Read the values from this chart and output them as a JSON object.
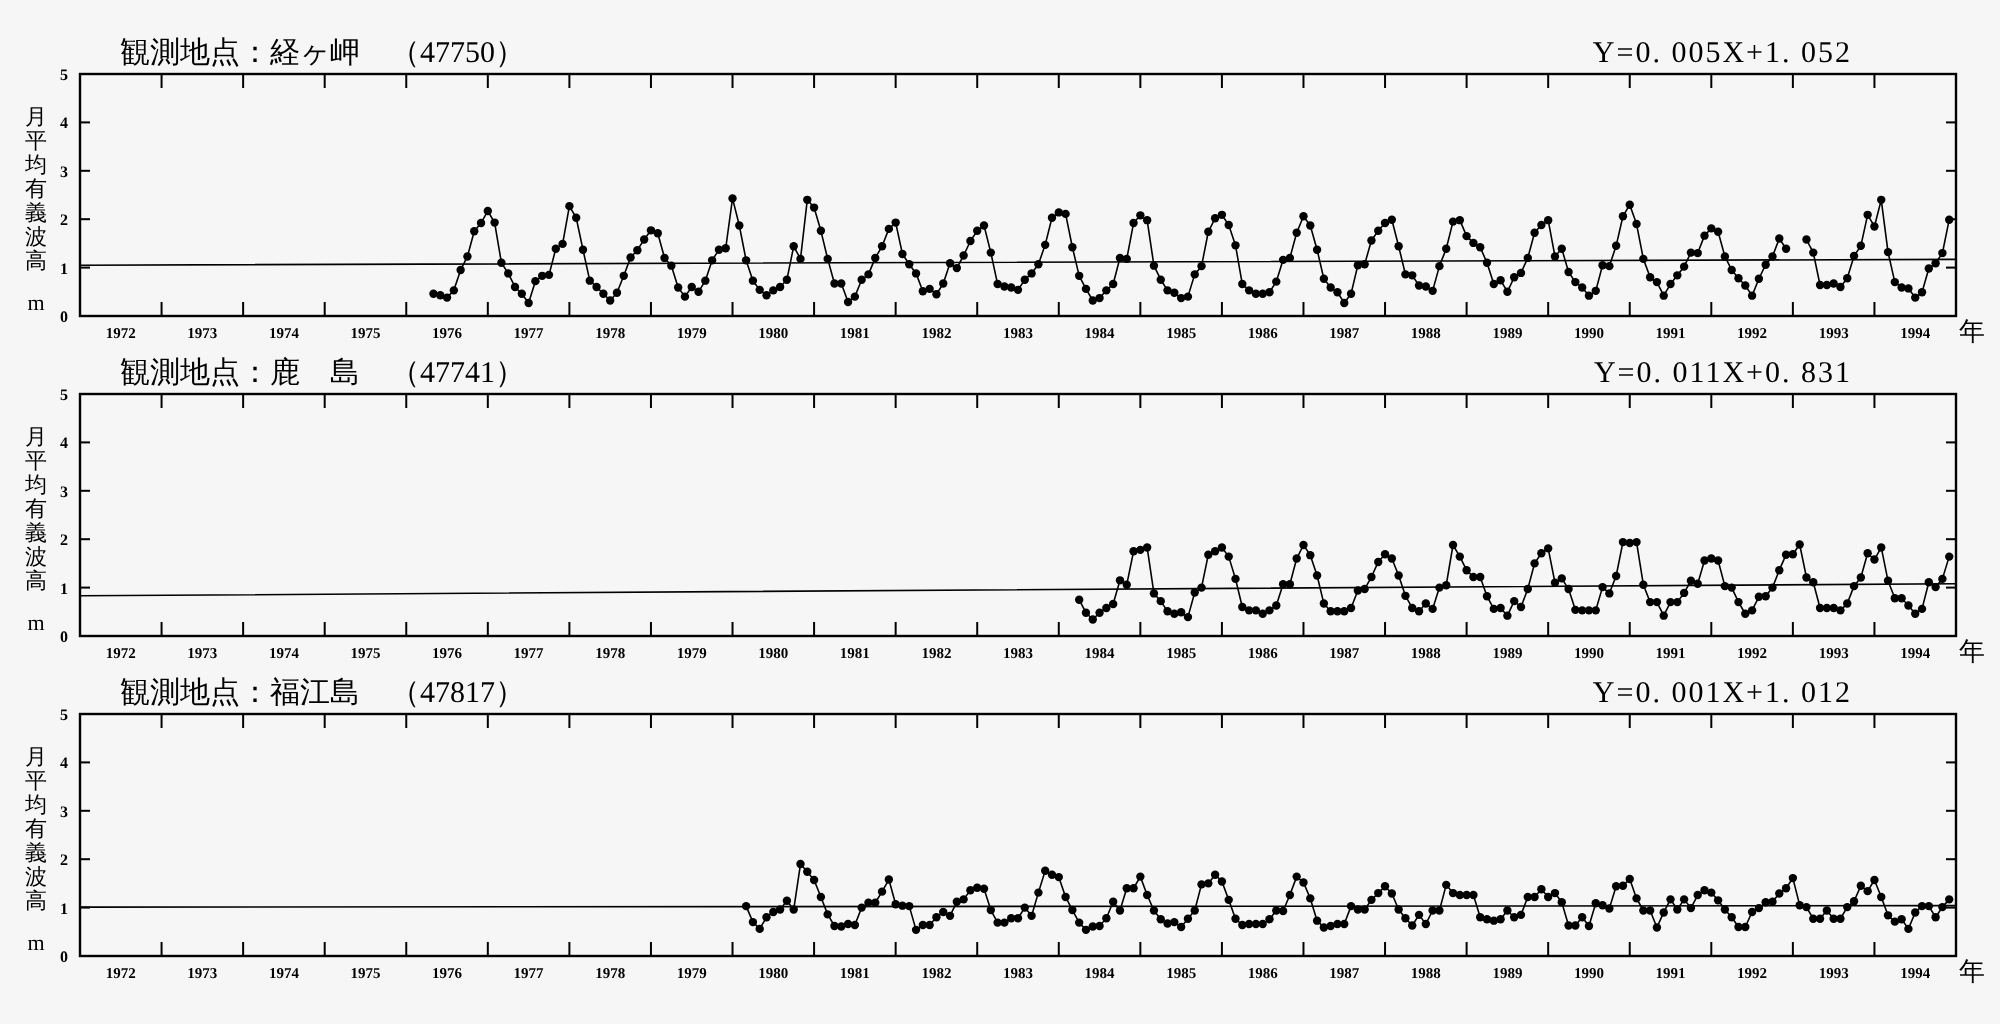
{
  "chart_data": [
    {
      "type": "line",
      "title": "観測地点：経ヶ岬　（47750）",
      "annotations": [
        "Y=0. 005X+1. 052"
      ],
      "ylabel": "月平均有義波高 m",
      "xlabel": "年",
      "xlim": [
        "1972",
        "1995"
      ],
      "ylim": [
        0,
        5
      ],
      "yticks": [
        0,
        1,
        2,
        3,
        4,
        5
      ],
      "xticks": [
        {
          "value": "1972-07",
          "label": "1972"
        },
        {
          "value": "1973-07",
          "label": "1973"
        },
        {
          "value": "1974-07",
          "label": "1974"
        },
        {
          "value": "1975-07",
          "label": "1975"
        },
        {
          "value": "1976-07",
          "label": "1976"
        },
        {
          "value": "1977-07",
          "label": "1977"
        },
        {
          "value": "1978-07",
          "label": "1978"
        },
        {
          "value": "1979-07",
          "label": "1979"
        },
        {
          "value": "1980-07",
          "label": "1980"
        },
        {
          "value": "1981-07",
          "label": "1981"
        },
        {
          "value": "1982-07",
          "label": "1982"
        },
        {
          "value": "1983-07",
          "label": "1983"
        },
        {
          "value": "1984-07",
          "label": "1984"
        },
        {
          "value": "1985-07",
          "label": "1985"
        },
        {
          "value": "1986-07",
          "label": "1986"
        },
        {
          "value": "1987-07",
          "label": "1987"
        },
        {
          "value": "1988-07",
          "label": "1988"
        },
        {
          "value": "1989-07",
          "label": "1989"
        },
        {
          "value": "1990-07",
          "label": "1990"
        },
        {
          "value": "1991-07",
          "label": "1991"
        },
        {
          "value": "1992-07",
          "label": "1992"
        },
        {
          "value": "1993-07",
          "label": "1993"
        },
        {
          "value": "1994-07",
          "label": "1994"
        },
        {
          "value": "1973",
          "label": null
        },
        {
          "value": "1974",
          "label": null
        },
        {
          "value": "1975",
          "label": null
        },
        {
          "value": "1976",
          "label": null
        },
        {
          "value": "1977",
          "label": null
        },
        {
          "value": "1978",
          "label": null
        },
        {
          "value": "1979",
          "label": null
        },
        {
          "value": "1980",
          "label": null
        },
        {
          "value": "1981",
          "label": null
        },
        {
          "value": "1982",
          "label": null
        },
        {
          "value": "1983",
          "label": null
        },
        {
          "value": "1984",
          "label": null
        },
        {
          "value": "1985",
          "label": null
        },
        {
          "value": "1986",
          "label": null
        },
        {
          "value": "1987",
          "label": null
        },
        {
          "value": "1988",
          "label": null
        },
        {
          "value": "1989",
          "label": null
        },
        {
          "value": "1990",
          "label": null
        },
        {
          "value": "1991",
          "label": null
        },
        {
          "value": "1992",
          "label": null
        },
        {
          "value": "1993",
          "label": null
        },
        {
          "value": "1994",
          "label": null
        }
      ],
      "series": [
        {
          "type": "line",
          "marker": "circle",
          "color": "#000000",
          "x": [
            "1976-05",
            "1976-06",
            "1976-07",
            "1976-08",
            "1976-09",
            "1976-10",
            "1976-11",
            "1976-12",
            "1977-01",
            "1977-02",
            "1977-03",
            "1977-04",
            "1977-05",
            "1977-06",
            "1977-07",
            "1977-08",
            "1977-09",
            "1977-10",
            "1977-11",
            "1977-12",
            "1978-01",
            "1978-02",
            "1978-03",
            "1978-04",
            "1978-05",
            "1978-06",
            "1978-07",
            "1978-08",
            "1978-09",
            "1978-10",
            "1978-11",
            "1978-12",
            "1979-01",
            "1979-02",
            "1979-03",
            "1979-04",
            "1979-05",
            "1979-06",
            "1979-07",
            "1979-08",
            "1979-09",
            "1979-10",
            "1979-11",
            "1979-12",
            "1980-01",
            "1980-02",
            "1980-03",
            "1980-04",
            "1980-05",
            "1980-06",
            "1980-07",
            "1980-08",
            "1980-09",
            "1980-10",
            "1980-11",
            "1980-12",
            "1981-01",
            "1981-02",
            "1981-03",
            "1981-04",
            "1981-05",
            "1981-06",
            "1981-07",
            "1981-08",
            "1981-09",
            "1981-10",
            "1981-11",
            "1981-12",
            "1982-01",
            "1982-02",
            "1982-03",
            "1982-04",
            "1982-05",
            "1982-06",
            "1982-07",
            "1982-08",
            "1982-09",
            "1982-10",
            "1982-11",
            "1982-12",
            "1983-01",
            "1983-02",
            "1983-03",
            "1983-04",
            "1983-05",
            "1983-06",
            "1983-07",
            "1983-08",
            "1983-09",
            "1983-10",
            "1983-11",
            "1983-12",
            "1984-01",
            "1984-02",
            "1984-03",
            "1984-04",
            "1984-05",
            "1984-06",
            "1984-07",
            "1984-08",
            "1984-09",
            "1984-10",
            "1984-11",
            "1984-12",
            "1985-01",
            "1985-02",
            "1985-03",
            "1985-04",
            "1985-05",
            "1985-06",
            "1985-07",
            "1985-08",
            "1985-09",
            "1985-10",
            "1985-11",
            "1985-12",
            "1986-01",
            "1986-02",
            "1986-03",
            "1986-04",
            "1986-05",
            "1986-06",
            "1986-07",
            "1986-08",
            "1986-09",
            "1986-10",
            "1986-11",
            "1986-12",
            "1987-01",
            "1987-02",
            "1987-03",
            "1987-04",
            "1987-05",
            "1987-06",
            "1987-07",
            "1987-08",
            "1987-09",
            "1987-10",
            "1987-11",
            "1987-12",
            "1988-01",
            "1988-02",
            "1988-03",
            "1988-04",
            "1988-05",
            "1988-06",
            "1988-07",
            "1988-08",
            "1988-09",
            "1988-10",
            "1988-11",
            "1988-12",
            "1989-01",
            "1989-02",
            "1989-03",
            "1989-04",
            "1989-05",
            "1989-06",
            "1989-07",
            "1989-08",
            "1989-09",
            "1989-10",
            "1989-11",
            "1989-12",
            "1990-01",
            "1990-02",
            "1990-03",
            "1990-04",
            "1990-05",
            "1990-06",
            "1990-07",
            "1990-08",
            "1990-09",
            "1990-10",
            "1990-11",
            "1990-12",
            "1991-01",
            "1991-02",
            "1991-03",
            "1991-04",
            "1991-05",
            "1991-06",
            "1991-07",
            "1991-08",
            "1991-09",
            "1991-10",
            "1991-11",
            "1991-12",
            "1992-01",
            "1992-02",
            "1992-03",
            "1992-04",
            "1992-05",
            "1992-06",
            "1992-07",
            "1992-08",
            "1992-09",
            "1992-10",
            "1992-11",
            "1992-12",
            "1993-01",
            "1993-02",
            "1993-03",
            "1993-04",
            "1993-05",
            "1993-06",
            "1993-07",
            "1993-08",
            "1993-09",
            "1993-10",
            "1993-11",
            "1993-12",
            "1994-01",
            "1994-02",
            "1994-03",
            "1994-04",
            "1994-05",
            "1994-06",
            "1994-07",
            "1994-08",
            "1994-09",
            "1994-10",
            "1994-11",
            "1994-12"
          ],
          "values": [
            0.46,
            0.43,
            0.38,
            0.53,
            0.95,
            1.23,
            1.75,
            1.92,
            2.17,
            1.93,
            1.1,
            0.88,
            0.6,
            0.46,
            0.27,
            0.72,
            0.83,
            0.85,
            1.39,
            1.49,
            2.27,
            2.03,
            1.37,
            0.73,
            0.6,
            0.46,
            0.32,
            0.48,
            0.83,
            1.21,
            1.36,
            1.58,
            1.77,
            1.71,
            1.2,
            1.04,
            0.59,
            0.4,
            0.6,
            0.5,
            0.73,
            1.15,
            1.37,
            1.4,
            2.43,
            1.87,
            1.15,
            0.73,
            0.54,
            0.43,
            0.53,
            0.6,
            0.75,
            1.44,
            1.18,
            2.4,
            2.24,
            1.76,
            1.18,
            0.67,
            0.67,
            0.29,
            0.4,
            0.75,
            0.86,
            1.2,
            1.44,
            1.8,
            1.93,
            1.28,
            1.07,
            0.88,
            0.51,
            0.56,
            0.45,
            0.67,
            1.09,
            0.99,
            1.25,
            1.55,
            1.76,
            1.87,
            1.31,
            0.66,
            0.61,
            0.59,
            0.54,
            0.75,
            0.88,
            1.07,
            1.47,
            2.03,
            2.14,
            2.11,
            1.42,
            0.83,
            0.56,
            0.32,
            0.37,
            0.53,
            0.66,
            1.2,
            1.18,
            1.92,
            2.08,
            1.98,
            1.04,
            0.75,
            0.53,
            0.48,
            0.37,
            0.4,
            0.86,
            1.03,
            1.74,
            2.02,
            2.09,
            1.88,
            1.46,
            0.66,
            0.53,
            0.46,
            0.46,
            0.49,
            0.71,
            1.16,
            1.2,
            1.72,
            2.06,
            1.87,
            1.37,
            0.77,
            0.59,
            0.49,
            0.27,
            0.46,
            1.05,
            1.07,
            1.56,
            1.76,
            1.92,
            1.99,
            1.44,
            0.86,
            0.84,
            0.63,
            0.61,
            0.52,
            1.03,
            1.39,
            1.95,
            1.98,
            1.65,
            1.51,
            1.42,
            1.1,
            0.66,
            0.74,
            0.5,
            0.8,
            0.89,
            1.2,
            1.72,
            1.88,
            1.98,
            1.23,
            1.39,
            0.91,
            0.7,
            0.59,
            0.42,
            0.52,
            1.05,
            1.03,
            1.45,
            2.06,
            2.3,
            1.9,
            1.18,
            0.8,
            0.7,
            0.42,
            0.66,
            0.84,
            1.02,
            1.31,
            1.3,
            1.66,
            1.81,
            1.74,
            1.23,
            0.95,
            0.78,
            0.63,
            0.42,
            0.77,
            1.06,
            1.23,
            1.6,
            1.39,
            null,
            null,
            1.58,
            1.31,
            0.64,
            0.64,
            0.67,
            0.6,
            0.78,
            1.24,
            1.45,
            2.09,
            1.85,
            2.4,
            1.32,
            0.7,
            0.59,
            0.57,
            0.38,
            0.49,
            0.98,
            1.09,
            1.3,
            1.99
          ]
        },
        {
          "type": "line",
          "marker": "none",
          "color": "#000000",
          "x": [
            "1972",
            "1995"
          ],
          "values": [
            1.05,
            1.17
          ]
        }
      ]
    },
    {
      "type": "line",
      "title": "観測地点：鹿　島　（47741）",
      "annotations": [
        "Y=0. 011X+0. 831"
      ],
      "ylabel": "月平均有義波高 m",
      "xlabel": "年",
      "xlim": [
        "1972",
        "1995"
      ],
      "ylim": [
        0,
        5
      ],
      "yticks": [
        0,
        1,
        2,
        3,
        4,
        5
      ],
      "xticks": [
        {
          "value": "1972-07",
          "label": "1972"
        },
        {
          "value": "1973-07",
          "label": "1973"
        },
        {
          "value": "1974-07",
          "label": "1974"
        },
        {
          "value": "1975-07",
          "label": "1975"
        },
        {
          "value": "1976-07",
          "label": "1976"
        },
        {
          "value": "1977-07",
          "label": "1977"
        },
        {
          "value": "1978-07",
          "label": "1978"
        },
        {
          "value": "1979-07",
          "label": "1979"
        },
        {
          "value": "1980-07",
          "label": "1980"
        },
        {
          "value": "1981-07",
          "label": "1981"
        },
        {
          "value": "1982-07",
          "label": "1982"
        },
        {
          "value": "1983-07",
          "label": "1983"
        },
        {
          "value": "1984-07",
          "label": "1984"
        },
        {
          "value": "1985-07",
          "label": "1985"
        },
        {
          "value": "1986-07",
          "label": "1986"
        },
        {
          "value": "1987-07",
          "label": "1987"
        },
        {
          "value": "1988-07",
          "label": "1988"
        },
        {
          "value": "1989-07",
          "label": "1989"
        },
        {
          "value": "1990-07",
          "label": "1990"
        },
        {
          "value": "1991-07",
          "label": "1991"
        },
        {
          "value": "1992-07",
          "label": "1992"
        },
        {
          "value": "1993-07",
          "label": "1993"
        },
        {
          "value": "1994-07",
          "label": "1994"
        },
        {
          "value": "1973",
          "label": null
        },
        {
          "value": "1974",
          "label": null
        },
        {
          "value": "1975",
          "label": null
        },
        {
          "value": "1976",
          "label": null
        },
        {
          "value": "1977",
          "label": null
        },
        {
          "value": "1978",
          "label": null
        },
        {
          "value": "1979",
          "label": null
        },
        {
          "value": "1980",
          "label": null
        },
        {
          "value": "1981",
          "label": null
        },
        {
          "value": "1982",
          "label": null
        },
        {
          "value": "1983",
          "label": null
        },
        {
          "value": "1984",
          "label": null
        },
        {
          "value": "1985",
          "label": null
        },
        {
          "value": "1986",
          "label": null
        },
        {
          "value": "1987",
          "label": null
        },
        {
          "value": "1988",
          "label": null
        },
        {
          "value": "1989",
          "label": null
        },
        {
          "value": "1990",
          "label": null
        },
        {
          "value": "1991",
          "label": null
        },
        {
          "value": "1992",
          "label": null
        },
        {
          "value": "1993",
          "label": null
        },
        {
          "value": "1994",
          "label": null
        }
      ],
      "series": [
        {
          "type": "line",
          "marker": "circle",
          "color": "#000000",
          "x": [
            "1984-04",
            "1984-05",
            "1984-06",
            "1984-07",
            "1984-08",
            "1984-09",
            "1984-10",
            "1984-11",
            "1984-12",
            "1985-01",
            "1985-02",
            "1985-03",
            "1985-04",
            "1985-05",
            "1985-06",
            "1985-07",
            "1985-08",
            "1985-09",
            "1985-10",
            "1985-11",
            "1985-12",
            "1986-01",
            "1986-02",
            "1986-03",
            "1986-04",
            "1986-05",
            "1986-06",
            "1986-07",
            "1986-08",
            "1986-09",
            "1986-10",
            "1986-11",
            "1986-12",
            "1987-01",
            "1987-02",
            "1987-03",
            "1987-04",
            "1987-05",
            "1987-06",
            "1987-07",
            "1987-08",
            "1987-09",
            "1987-10",
            "1987-11",
            "1987-12",
            "1988-01",
            "1988-02",
            "1988-03",
            "1988-04",
            "1988-05",
            "1988-06",
            "1988-07",
            "1988-08",
            "1988-09",
            "1988-10",
            "1988-11",
            "1988-12",
            "1989-01",
            "1989-02",
            "1989-03",
            "1989-04",
            "1989-05",
            "1989-06",
            "1989-07",
            "1989-08",
            "1989-09",
            "1989-10",
            "1989-11",
            "1989-12",
            "1990-01",
            "1990-02",
            "1990-03",
            "1990-04",
            "1990-05",
            "1990-06",
            "1990-07",
            "1990-08",
            "1990-09",
            "1990-10",
            "1990-11",
            "1990-12",
            "1991-01",
            "1991-02",
            "1991-03",
            "1991-04",
            "1991-05",
            "1991-06",
            "1991-07",
            "1991-08",
            "1991-09",
            "1991-10",
            "1991-11",
            "1991-12",
            "1992-01",
            "1992-02",
            "1992-03",
            "1992-04",
            "1992-05",
            "1992-06",
            "1992-07",
            "1992-08",
            "1992-09",
            "1992-10",
            "1992-11",
            "1992-12",
            "1993-01",
            "1993-02",
            "1993-03",
            "1993-04",
            "1993-05",
            "1993-06",
            "1993-07",
            "1993-08",
            "1993-09",
            "1993-10",
            "1993-11",
            "1993-12",
            "1994-01",
            "1994-02",
            "1994-03",
            "1994-04",
            "1994-05",
            "1994-06",
            "1994-07",
            "1994-08",
            "1994-09",
            "1994-10",
            "1994-11",
            "1994-12"
          ],
          "values": [
            0.75,
            0.48,
            0.34,
            0.48,
            0.58,
            0.66,
            1.15,
            1.06,
            1.75,
            1.78,
            1.83,
            0.88,
            0.72,
            0.51,
            0.46,
            0.49,
            0.39,
            0.9,
            1.0,
            1.68,
            1.75,
            1.83,
            1.64,
            1.18,
            0.6,
            0.53,
            0.53,
            0.46,
            0.53,
            0.63,
            1.07,
            1.07,
            1.6,
            1.88,
            1.67,
            1.25,
            0.67,
            0.51,
            0.51,
            0.51,
            0.58,
            0.94,
            0.97,
            1.22,
            1.53,
            1.69,
            1.6,
            1.25,
            0.83,
            0.58,
            0.51,
            0.67,
            0.56,
            1.0,
            1.05,
            1.88,
            1.64,
            1.36,
            1.22,
            1.22,
            0.82,
            0.56,
            0.58,
            0.42,
            0.72,
            0.6,
            0.97,
            1.5,
            1.71,
            1.81,
            1.1,
            1.19,
            0.97,
            0.54,
            0.53,
            0.53,
            0.53,
            1.01,
            0.88,
            1.24,
            1.94,
            1.92,
            1.94,
            1.06,
            0.7,
            0.7,
            0.42,
            0.7,
            0.7,
            0.89,
            1.14,
            1.08,
            1.56,
            1.6,
            1.56,
            1.03,
            1.0,
            0.7,
            0.46,
            0.53,
            0.81,
            0.82,
            1.0,
            1.36,
            1.68,
            1.69,
            1.89,
            1.21,
            1.11,
            0.58,
            0.58,
            0.58,
            0.53,
            0.67,
            1.03,
            1.21,
            1.71,
            1.58,
            1.83,
            1.14,
            0.78,
            0.78,
            0.63,
            0.46,
            0.56,
            1.11,
            1.01,
            1.18,
            1.64
          ]
        },
        {
          "type": "line",
          "marker": "none",
          "color": "#000000",
          "x": [
            "1972",
            "1995"
          ],
          "values": [
            0.83,
            1.08
          ]
        }
      ]
    },
    {
      "type": "line",
      "title": "観測地点：福江島　（47817）",
      "annotations": [
        "Y=0. 001X+1. 012"
      ],
      "ylabel": "月平均有義波高 m",
      "xlabel": "年",
      "xlim": [
        "1972",
        "1995"
      ],
      "ylim": [
        0,
        5
      ],
      "yticks": [
        0,
        1,
        2,
        3,
        4,
        5
      ],
      "xticks": [
        {
          "value": "1972-07",
          "label": "1972"
        },
        {
          "value": "1973-07",
          "label": "1973"
        },
        {
          "value": "1974-07",
          "label": "1974"
        },
        {
          "value": "1975-07",
          "label": "1975"
        },
        {
          "value": "1976-07",
          "label": "1976"
        },
        {
          "value": "1977-07",
          "label": "1977"
        },
        {
          "value": "1978-07",
          "label": "1978"
        },
        {
          "value": "1979-07",
          "label": "1979"
        },
        {
          "value": "1980-07",
          "label": "1980"
        },
        {
          "value": "1981-07",
          "label": "1981"
        },
        {
          "value": "1982-07",
          "label": "1982"
        },
        {
          "value": "1983-07",
          "label": "1983"
        },
        {
          "value": "1984-07",
          "label": "1984"
        },
        {
          "value": "1985-07",
          "label": "1985"
        },
        {
          "value": "1986-07",
          "label": "1986"
        },
        {
          "value": "1987-07",
          "label": "1987"
        },
        {
          "value": "1988-07",
          "label": "1988"
        },
        {
          "value": "1989-07",
          "label": "1989"
        },
        {
          "value": "1990-07",
          "label": "1990"
        },
        {
          "value": "1991-07",
          "label": "1991"
        },
        {
          "value": "1992-07",
          "label": "1992"
        },
        {
          "value": "1993-07",
          "label": "1993"
        },
        {
          "value": "1994-07",
          "label": "1994"
        },
        {
          "value": "1973",
          "label": null
        },
        {
          "value": "1974",
          "label": null
        },
        {
          "value": "1975",
          "label": null
        },
        {
          "value": "1976",
          "label": null
        },
        {
          "value": "1977",
          "label": null
        },
        {
          "value": "1978",
          "label": null
        },
        {
          "value": "1979",
          "label": null
        },
        {
          "value": "1980",
          "label": null
        },
        {
          "value": "1981",
          "label": null
        },
        {
          "value": "1982",
          "label": null
        },
        {
          "value": "1983",
          "label": null
        },
        {
          "value": "1984",
          "label": null
        },
        {
          "value": "1985",
          "label": null
        },
        {
          "value": "1986",
          "label": null
        },
        {
          "value": "1987",
          "label": null
        },
        {
          "value": "1988",
          "label": null
        },
        {
          "value": "1989",
          "label": null
        },
        {
          "value": "1990",
          "label": null
        },
        {
          "value": "1991",
          "label": null
        },
        {
          "value": "1992",
          "label": null
        },
        {
          "value": "1993",
          "label": null
        },
        {
          "value": "1994",
          "label": null
        }
      ],
      "series": [
        {
          "type": "line",
          "marker": "circle",
          "color": "#000000",
          "x": [
            "1980-03",
            "1980-04",
            "1980-05",
            "1980-06",
            "1980-07",
            "1980-08",
            "1980-09",
            "1980-10",
            "1980-11",
            "1980-12",
            "1981-01",
            "1981-02",
            "1981-03",
            "1981-04",
            "1981-05",
            "1981-06",
            "1981-07",
            "1981-08",
            "1981-09",
            "1981-10",
            "1981-11",
            "1981-12",
            "1982-01",
            "1982-02",
            "1982-03",
            "1982-04",
            "1982-05",
            "1982-06",
            "1982-07",
            "1982-08",
            "1982-09",
            "1982-10",
            "1982-11",
            "1982-12",
            "1983-01",
            "1983-02",
            "1983-03",
            "1983-04",
            "1983-05",
            "1983-06",
            "1983-07",
            "1983-08",
            "1983-09",
            "1983-10",
            "1983-11",
            "1983-12",
            "1984-01",
            "1984-02",
            "1984-03",
            "1984-04",
            "1984-05",
            "1984-06",
            "1984-07",
            "1984-08",
            "1984-09",
            "1984-10",
            "1984-11",
            "1984-12",
            "1985-01",
            "1985-02",
            "1985-03",
            "1985-04",
            "1985-05",
            "1985-06",
            "1985-07",
            "1985-08",
            "1985-09",
            "1985-10",
            "1985-11",
            "1985-12",
            "1986-01",
            "1986-02",
            "1986-03",
            "1986-04",
            "1986-05",
            "1986-06",
            "1986-07",
            "1986-08",
            "1986-09",
            "1986-10",
            "1986-11",
            "1986-12",
            "1987-01",
            "1987-02",
            "1987-03",
            "1987-04",
            "1987-05",
            "1987-06",
            "1987-07",
            "1987-08",
            "1987-09",
            "1987-10",
            "1987-11",
            "1987-12",
            "1988-01",
            "1988-02",
            "1988-03",
            "1988-04",
            "1988-05",
            "1988-06",
            "1988-07",
            "1988-08",
            "1988-09",
            "1988-10",
            "1988-11",
            "1988-12",
            "1989-01",
            "1989-02",
            "1989-03",
            "1989-04",
            "1989-05",
            "1989-06",
            "1989-07",
            "1989-08",
            "1989-09",
            "1989-10",
            "1989-11",
            "1989-12",
            "1990-01",
            "1990-02",
            "1990-03",
            "1990-04",
            "1990-05",
            "1990-06",
            "1990-07",
            "1990-08",
            "1990-09",
            "1990-10",
            "1990-11",
            "1990-12",
            "1991-01",
            "1991-02",
            "1991-03",
            "1991-04",
            "1991-05",
            "1991-06",
            "1991-07",
            "1991-08",
            "1991-09",
            "1991-10",
            "1991-11",
            "1991-12",
            "1992-01",
            "1992-02",
            "1992-03",
            "1992-04",
            "1992-05",
            "1992-06",
            "1992-07",
            "1992-08",
            "1992-09",
            "1992-10",
            "1992-11",
            "1992-12",
            "1993-01",
            "1993-02",
            "1993-03",
            "1993-04",
            "1993-05",
            "1993-06",
            "1993-07",
            "1993-08",
            "1993-09",
            "1993-10",
            "1993-11",
            "1993-12",
            "1994-01",
            "1994-02",
            "1994-03",
            "1994-04",
            "1994-05",
            "1994-06",
            "1994-07",
            "1994-08",
            "1994-09",
            "1994-10",
            "1994-11",
            "1994-12"
          ],
          "values": [
            1.03,
            0.7,
            0.56,
            0.8,
            0.91,
            0.96,
            1.14,
            0.96,
            1.9,
            1.74,
            1.57,
            1.22,
            0.86,
            0.62,
            0.61,
            0.66,
            0.64,
            1.0,
            1.1,
            1.1,
            1.33,
            1.58,
            1.07,
            1.04,
            1.03,
            0.54,
            0.64,
            0.64,
            0.8,
            0.91,
            0.83,
            1.12,
            1.17,
            1.36,
            1.41,
            1.39,
            0.95,
            0.69,
            0.69,
            0.78,
            0.78,
            1.0,
            0.83,
            1.31,
            1.76,
            1.68,
            1.63,
            1.22,
            0.95,
            0.69,
            0.54,
            0.61,
            0.62,
            0.78,
            1.12,
            0.94,
            1.4,
            1.4,
            1.64,
            1.26,
            0.94,
            0.76,
            0.67,
            0.7,
            0.6,
            0.77,
            0.94,
            1.48,
            1.5,
            1.68,
            1.54,
            1.16,
            0.77,
            0.64,
            0.66,
            0.66,
            0.66,
            0.76,
            0.94,
            0.93,
            1.26,
            1.64,
            1.52,
            1.19,
            0.73,
            0.59,
            0.62,
            0.66,
            0.66,
            1.03,
            0.96,
            0.96,
            1.16,
            1.3,
            1.44,
            1.29,
            0.96,
            0.78,
            0.63,
            0.85,
            0.66,
            0.94,
            0.94,
            1.47,
            1.3,
            1.26,
            1.26,
            1.26,
            0.8,
            0.76,
            0.73,
            0.76,
            0.94,
            0.8,
            0.85,
            1.22,
            1.22,
            1.38,
            1.22,
            1.3,
            1.11,
            0.63,
            0.63,
            0.8,
            0.62,
            1.09,
            1.05,
            0.98,
            1.44,
            1.45,
            1.59,
            1.19,
            0.94,
            0.94,
            0.59,
            0.9,
            1.17,
            0.96,
            1.17,
            0.99,
            1.26,
            1.36,
            1.31,
            1.15,
            0.96,
            0.8,
            0.6,
            0.6,
            0.91,
            0.99,
            1.11,
            1.12,
            1.29,
            1.4,
            1.61,
            1.05,
            1.01,
            0.77,
            0.77,
            0.94,
            0.77,
            0.77,
            1.01,
            1.13,
            1.45,
            1.34,
            1.57,
            1.22,
            0.84,
            0.71,
            0.76,
            0.56,
            0.9,
            1.03,
            1.03,
            0.8,
            1.01,
            1.17
          ]
        },
        {
          "type": "line",
          "marker": "none",
          "color": "#000000",
          "x": [
            "1972",
            "1995"
          ],
          "values": [
            1.01,
            1.04
          ]
        }
      ]
    }
  ]
}
